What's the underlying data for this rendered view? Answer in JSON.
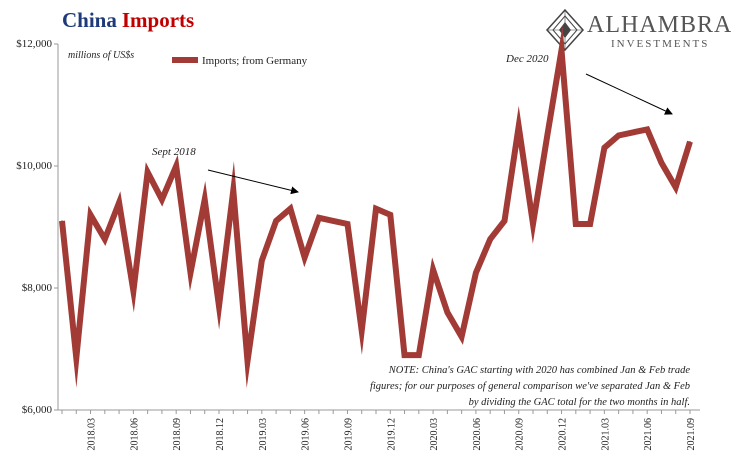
{
  "header": {
    "title_part1": "China",
    "title_part2": "Imports",
    "logo_name": "ALHAMBRA",
    "logo_sub": "INVESTMENTS"
  },
  "chart_data": {
    "type": "line",
    "title": "China Imports",
    "ylabel": "millions of US$s",
    "xlabel": "",
    "ylim": [
      6000,
      12000
    ],
    "yticks": [
      6000,
      8000,
      10000,
      12000
    ],
    "ytick_labels": [
      "$6,000",
      "$8,000",
      "$10,000",
      "$12,000"
    ],
    "xtick_labels": [
      "2018.03",
      "2018.06",
      "2018.09",
      "2018.12",
      "2019.03",
      "2019.06",
      "2019.09",
      "2019.12",
      "2020.03",
      "2020.06",
      "2020.09",
      "2020.12",
      "2021.03",
      "2021.06",
      "2021.09"
    ],
    "x": [
      "2018.01",
      "2018.02",
      "2018.03",
      "2018.04",
      "2018.05",
      "2018.06",
      "2018.07",
      "2018.08",
      "2018.09",
      "2018.10",
      "2018.11",
      "2018.12",
      "2019.01",
      "2019.02",
      "2019.03",
      "2019.04",
      "2019.05",
      "2019.06",
      "2019.07",
      "2019.08",
      "2019.09",
      "2019.10",
      "2019.11",
      "2019.12",
      "2020.01",
      "2020.02",
      "2020.03",
      "2020.04",
      "2020.05",
      "2020.06",
      "2020.07",
      "2020.08",
      "2020.09",
      "2020.10",
      "2020.11",
      "2020.12",
      "2021.01",
      "2021.02",
      "2021.03",
      "2021.04",
      "2021.05",
      "2021.06",
      "2021.07",
      "2021.08",
      "2021.09"
    ],
    "series": [
      {
        "name": "Imports; from Germany",
        "color": "#a23a36",
        "values": [
          9100,
          6850,
          9200,
          8800,
          9400,
          7950,
          9900,
          9450,
          10000,
          8250,
          9450,
          7700,
          9600,
          6800,
          8450,
          9100,
          9300,
          8500,
          9150,
          9100,
          9050,
          7300,
          9300,
          9200,
          6900,
          6900,
          8300,
          7600,
          7200,
          8250,
          8800,
          9100,
          10650,
          9050,
          10500,
          11900,
          9050,
          9050,
          10300,
          10500,
          10550,
          10600,
          10050,
          9650,
          10400
        ]
      }
    ],
    "legend": "top-left",
    "annotations": [
      {
        "text": "Sept 2018"
      },
      {
        "text": "Dec 2020"
      },
      {
        "text": "NOTE: China's GAC starting with 2020 has combined Jan & Feb trade"
      },
      {
        "text": "figures; for our purposes of general comparison we've separated Jan & Feb"
      },
      {
        "text": "by dividing the GAC total for the two months in half."
      }
    ]
  }
}
